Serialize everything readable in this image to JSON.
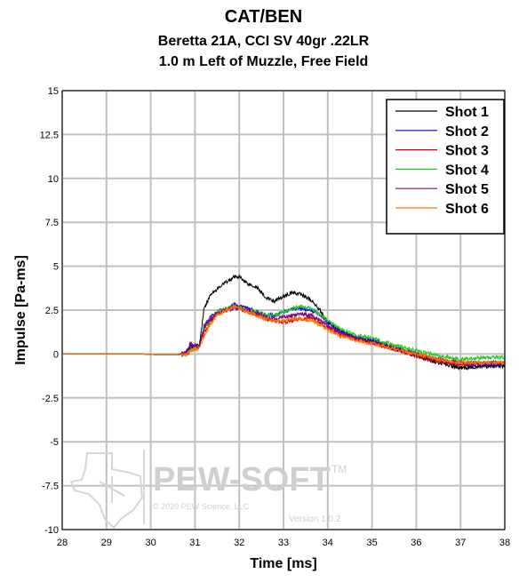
{
  "header": {
    "title": "CAT/BEN",
    "subtitle1": "Beretta 21A, CCI SV 40gr .22LR",
    "subtitle2": "1.0 m Left of Muzzle, Free Field"
  },
  "watermark": {
    "brand": "PEW-SOFT",
    "tm": "TM",
    "copyright": "© 2020 PEW Science, LLC",
    "version": "Version 1.0.2"
  },
  "chart_data": {
    "type": "line",
    "title": "CAT/BEN",
    "xlabel": "Time [ms]",
    "ylabel": "Impulse [Pa-ms]",
    "xlim": [
      28,
      38
    ],
    "ylim": [
      -10,
      15
    ],
    "xticks": [
      28,
      29,
      30,
      31,
      32,
      33,
      34,
      35,
      36,
      37,
      38
    ],
    "yticks": [
      -10,
      -7.5,
      -5,
      -2.5,
      0,
      2.5,
      5,
      7.5,
      10,
      12.5,
      15
    ],
    "xtick_labels": [
      "28",
      "29",
      "30",
      "31",
      "32",
      "33",
      "34",
      "35",
      "36",
      "37",
      "38"
    ],
    "ytick_labels": [
      "-10",
      "-7.5",
      "-5",
      "-2.5",
      "0",
      "2.5",
      "5",
      "7.5",
      "10",
      "12.5",
      "15"
    ],
    "grid": true,
    "legend_position": "top-right",
    "x": [
      28,
      29.8,
      30.2,
      30.6,
      30.8,
      30.9,
      31.0,
      31.1,
      31.2,
      31.35,
      31.5,
      31.7,
      31.9,
      32.0,
      32.2,
      32.4,
      32.6,
      32.8,
      33.0,
      33.2,
      33.4,
      33.6,
      33.8,
      34.0,
      34.3,
      34.6,
      35.0,
      35.5,
      36.0,
      36.5,
      37.0,
      37.5,
      38.0
    ],
    "series": [
      {
        "name": "Shot 1",
        "color": "#000000",
        "values": [
          0,
          0,
          -0.05,
          -0.05,
          0.1,
          0.3,
          0.4,
          0.5,
          2.5,
          3.4,
          3.7,
          4.1,
          4.4,
          4.4,
          4.0,
          3.8,
          3.2,
          3.0,
          3.3,
          3.5,
          3.4,
          3.1,
          2.6,
          1.8,
          1.3,
          0.9,
          0.7,
          0.3,
          -0.1,
          -0.5,
          -0.8,
          -0.7,
          -0.7
        ]
      },
      {
        "name": "Shot 2",
        "color": "#0000cc",
        "values": [
          0,
          0,
          -0.05,
          -0.05,
          0.1,
          0.5,
          0.5,
          0.4,
          1.6,
          2.1,
          2.4,
          2.6,
          2.8,
          2.7,
          2.6,
          2.4,
          2.2,
          2.2,
          2.4,
          2.6,
          2.6,
          2.5,
          2.3,
          1.8,
          1.3,
          1.0,
          0.8,
          0.4,
          0.0,
          -0.4,
          -0.6,
          -0.6,
          -0.6
        ]
      },
      {
        "name": "Shot 3",
        "color": "#dd0000",
        "values": [
          0,
          0,
          -0.05,
          -0.05,
          0.0,
          0.2,
          0.4,
          0.4,
          1.2,
          1.8,
          2.3,
          2.5,
          2.7,
          2.6,
          2.4,
          2.2,
          2.0,
          1.9,
          1.8,
          1.9,
          2.0,
          2.1,
          1.8,
          1.5,
          1.1,
          0.9,
          0.6,
          0.3,
          -0.1,
          -0.4,
          -0.6,
          -0.5,
          -0.5
        ]
      },
      {
        "name": "Shot 4",
        "color": "#22cc22",
        "values": [
          0,
          0,
          -0.05,
          -0.05,
          0.0,
          0.2,
          0.3,
          0.4,
          1.4,
          2.0,
          2.4,
          2.6,
          2.7,
          2.6,
          2.5,
          2.4,
          2.2,
          2.2,
          2.4,
          2.6,
          2.7,
          2.6,
          2.3,
          1.9,
          1.4,
          1.1,
          0.9,
          0.5,
          0.2,
          -0.1,
          -0.3,
          -0.2,
          -0.2
        ]
      },
      {
        "name": "Shot 5",
        "color": "#800080",
        "values": [
          0,
          0,
          -0.05,
          -0.05,
          0.1,
          0.6,
          0.5,
          0.4,
          1.5,
          2.0,
          2.3,
          2.5,
          2.6,
          2.6,
          2.5,
          2.3,
          2.1,
          2.0,
          2.1,
          2.2,
          2.3,
          2.2,
          2.0,
          1.6,
          1.2,
          0.9,
          0.7,
          0.3,
          0.0,
          -0.3,
          -0.5,
          -0.5,
          -0.5
        ]
      },
      {
        "name": "Shot 6",
        "color": "#ff7700",
        "values": [
          0,
          0,
          -0.05,
          -0.05,
          0.0,
          0.2,
          0.3,
          0.3,
          1.0,
          1.7,
          2.2,
          2.5,
          2.7,
          2.6,
          2.4,
          2.2,
          2.0,
          1.9,
          1.9,
          2.0,
          2.0,
          1.9,
          1.7,
          1.4,
          1.0,
          0.8,
          0.6,
          0.3,
          0.0,
          -0.3,
          -0.5,
          -0.5,
          -0.5
        ]
      }
    ]
  }
}
